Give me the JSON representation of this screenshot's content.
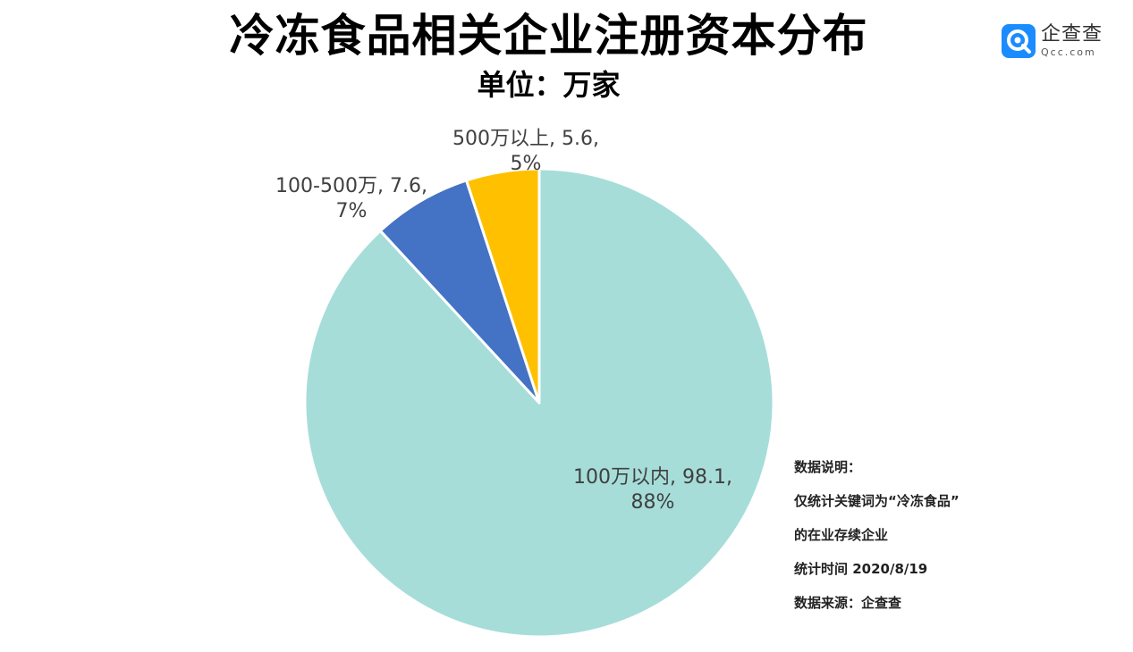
{
  "header": {
    "title": "冷冻食品相关企业注册资本分布",
    "subtitle": "单位：万家"
  },
  "logo": {
    "name": "企查查",
    "domain": "Qcc.com",
    "icon": "qcc-logo-icon",
    "color": "#1a8cff"
  },
  "notes": {
    "heading": "数据说明：",
    "line1": "仅统计关键词为“冷冻食品”",
    "line2": "的在业存续企业",
    "line3": "统计时间 2020/8/19",
    "line4": "数据来源：企查查"
  },
  "chart_data": {
    "type": "pie",
    "title": "冷冻食品相关企业注册资本分布",
    "subtitle": "单位：万家",
    "slices": [
      {
        "label": "100万以内",
        "value": 98.1,
        "percent": "88%",
        "color": "#a6ddd9",
        "text_line1": "100万以内, 98.1,",
        "text_line2": "88%"
      },
      {
        "label": "100-500万",
        "value": 7.6,
        "percent": "7%",
        "color": "#4472c4",
        "text_line1": "100-500万, 7.6,",
        "text_line2": "7%"
      },
      {
        "label": "500万以上",
        "value": 5.6,
        "percent": "5%",
        "color": "#ffc000",
        "text_line1": "500万以上, 5.6,",
        "text_line2": "5%"
      }
    ],
    "start_angle": "12 o'clock",
    "direction": "clockwise"
  }
}
